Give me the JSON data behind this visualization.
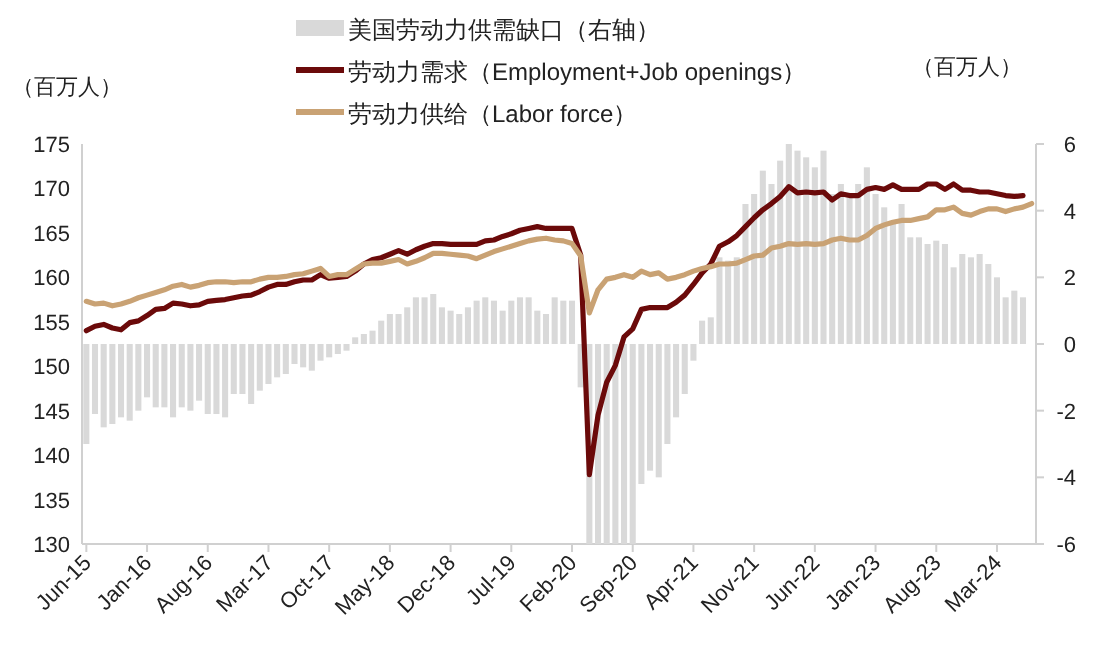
{
  "chart_data": {
    "type": "bar",
    "ylabel": "（百万人）",
    "y2label": "（百万人）",
    "categories": [
      "Jun-15",
      null,
      null,
      null,
      null,
      null,
      null,
      "Jan-16",
      null,
      null,
      null,
      null,
      null,
      null,
      "Aug-16",
      null,
      null,
      null,
      null,
      null,
      null,
      "Mar-17",
      null,
      null,
      null,
      null,
      null,
      null,
      "Oct-17",
      null,
      null,
      null,
      null,
      null,
      null,
      "May-18",
      null,
      null,
      null,
      null,
      null,
      null,
      "Dec-18",
      null,
      null,
      null,
      null,
      null,
      null,
      "Jul-19",
      null,
      null,
      null,
      null,
      null,
      null,
      "Feb-20",
      null,
      null,
      null,
      null,
      null,
      null,
      "Sep-20",
      null,
      null,
      null,
      null,
      null,
      null,
      "Apr-21",
      null,
      null,
      null,
      null,
      null,
      null,
      "Nov-21",
      null,
      null,
      null,
      null,
      null,
      null,
      "Jun-22",
      null,
      null,
      null,
      null,
      null,
      null,
      "Jan-23",
      null,
      null,
      null,
      null,
      null,
      null,
      "Aug-23",
      null,
      null,
      null,
      null,
      null,
      null,
      "Mar-24",
      null,
      null,
      null,
      null
    ],
    "series": [
      {
        "name": "美国劳动力供需缺口（右轴）",
        "axis": "y2",
        "color": "#d9d9d9",
        "values": [
          -3.0,
          -2.1,
          -2.5,
          -2.4,
          -2.2,
          -2.3,
          -2.0,
          -1.6,
          -1.9,
          -1.9,
          -2.2,
          -1.9,
          -2.0,
          -1.7,
          -2.1,
          -2.1,
          -2.2,
          -1.5,
          -1.5,
          -1.8,
          -1.4,
          -1.2,
          -1.0,
          -0.9,
          -0.6,
          -0.7,
          -0.8,
          -0.5,
          -0.4,
          -0.3,
          -0.2,
          0.2,
          0.3,
          0.4,
          0.7,
          0.9,
          0.9,
          1.1,
          1.4,
          1.4,
          1.5,
          1.1,
          1.0,
          0.9,
          1.1,
          1.3,
          1.4,
          1.3,
          1.0,
          1.3,
          1.4,
          1.4,
          1.0,
          0.9,
          1.4,
          1.3,
          1.3,
          -1.3,
          -6,
          -6,
          -6,
          -6,
          -6,
          -6,
          -4.2,
          -3.8,
          -4.0,
          -3.0,
          -2.2,
          -1.5,
          -0.5,
          0.7,
          0.8,
          2.6,
          2.5,
          2.6,
          4.2,
          4.5,
          5.2,
          4.8,
          5.5,
          6.0,
          5.8,
          5.6,
          5.3,
          5.8,
          4.5,
          4.8,
          4.5,
          4.8,
          5.3,
          4.5,
          4.1,
          3.6,
          4.2,
          3.2,
          3.2,
          3.0,
          3.1,
          3.0,
          2.3,
          2.7,
          2.6,
          2.7,
          2.4,
          2.0,
          1.4,
          1.6,
          1.4,
          null
        ]
      },
      {
        "name": "劳动力需求（Employment+Job openings）",
        "type": "line",
        "color": "#6b0a0a",
        "values": [
          154.0,
          154.5,
          154.7,
          154.3,
          154.1,
          154.9,
          155.1,
          155.7,
          156.4,
          156.5,
          157.1,
          157.0,
          156.8,
          156.9,
          157.3,
          157.4,
          157.5,
          157.7,
          157.9,
          158.0,
          158.4,
          158.9,
          159.2,
          159.2,
          159.5,
          159.7,
          159.7,
          160.3,
          159.9,
          160.0,
          160.1,
          160.7,
          161.5,
          162.0,
          162.2,
          162.6,
          163.0,
          162.6,
          163.1,
          163.5,
          163.8,
          163.8,
          163.7,
          163.7,
          163.7,
          163.7,
          164.1,
          164.2,
          164.6,
          164.9,
          165.3,
          165.5,
          165.7,
          165.5,
          165.5,
          165.5,
          165.5,
          162.5,
          137.8,
          144.5,
          148.2,
          150.1,
          153.3,
          154.2,
          156.4,
          156.6,
          156.6,
          156.6,
          157.2,
          158.0,
          159.2,
          160.5,
          161.5,
          163.5,
          164.0,
          164.7,
          165.7,
          166.7,
          167.6,
          168.3,
          169.1,
          170.2,
          169.5,
          169.6,
          169.5,
          169.6,
          168.7,
          169.4,
          169.2,
          169.2,
          169.9,
          170.1,
          169.9,
          170.4,
          169.9,
          169.9,
          169.9,
          170.5,
          170.5,
          169.9,
          170.5,
          169.8,
          169.8,
          169.6,
          169.6,
          169.4,
          169.2,
          169.1,
          169.2,
          null
        ]
      },
      {
        "name": "劳动力供给（Labor force）",
        "type": "line",
        "color": "#c9a274",
        "values": [
          157.3,
          157.0,
          157.1,
          156.8,
          157.0,
          157.3,
          157.7,
          158.0,
          158.3,
          158.6,
          159.0,
          159.2,
          158.9,
          159.1,
          159.4,
          159.5,
          159.5,
          159.4,
          159.5,
          159.5,
          159.8,
          160.0,
          160.0,
          160.1,
          160.3,
          160.4,
          160.7,
          161.0,
          160.1,
          160.3,
          160.3,
          160.9,
          161.5,
          161.6,
          161.6,
          161.8,
          162.0,
          161.5,
          161.8,
          162.2,
          162.7,
          162.7,
          162.6,
          162.5,
          162.4,
          162.1,
          162.5,
          162.9,
          163.2,
          163.5,
          163.8,
          164.1,
          164.3,
          164.4,
          164.2,
          164.1,
          163.8,
          162.4,
          156.0,
          158.6,
          159.8,
          160.0,
          160.3,
          160.0,
          160.7,
          160.3,
          160.5,
          159.8,
          160.0,
          160.3,
          160.7,
          161.0,
          161.2,
          161.5,
          161.5,
          161.6,
          162.0,
          162.4,
          162.5,
          163.3,
          163.5,
          163.8,
          163.7,
          163.8,
          163.7,
          163.8,
          164.2,
          164.4,
          164.2,
          164.2,
          164.7,
          165.5,
          165.9,
          166.2,
          166.4,
          166.4,
          166.6,
          166.8,
          167.6,
          167.6,
          167.9,
          167.2,
          167.0,
          167.4,
          167.7,
          167.7,
          167.4,
          167.7,
          167.9,
          168.3
        ]
      }
    ],
    "ylim": [
      130,
      175
    ],
    "yticks": [
      130,
      135,
      140,
      145,
      150,
      155,
      160,
      165,
      170,
      175
    ],
    "y2lim": [
      -6,
      6
    ],
    "y2ticks": [
      -6,
      -4,
      -2,
      0,
      2,
      4,
      6
    ],
    "legend": "top"
  }
}
